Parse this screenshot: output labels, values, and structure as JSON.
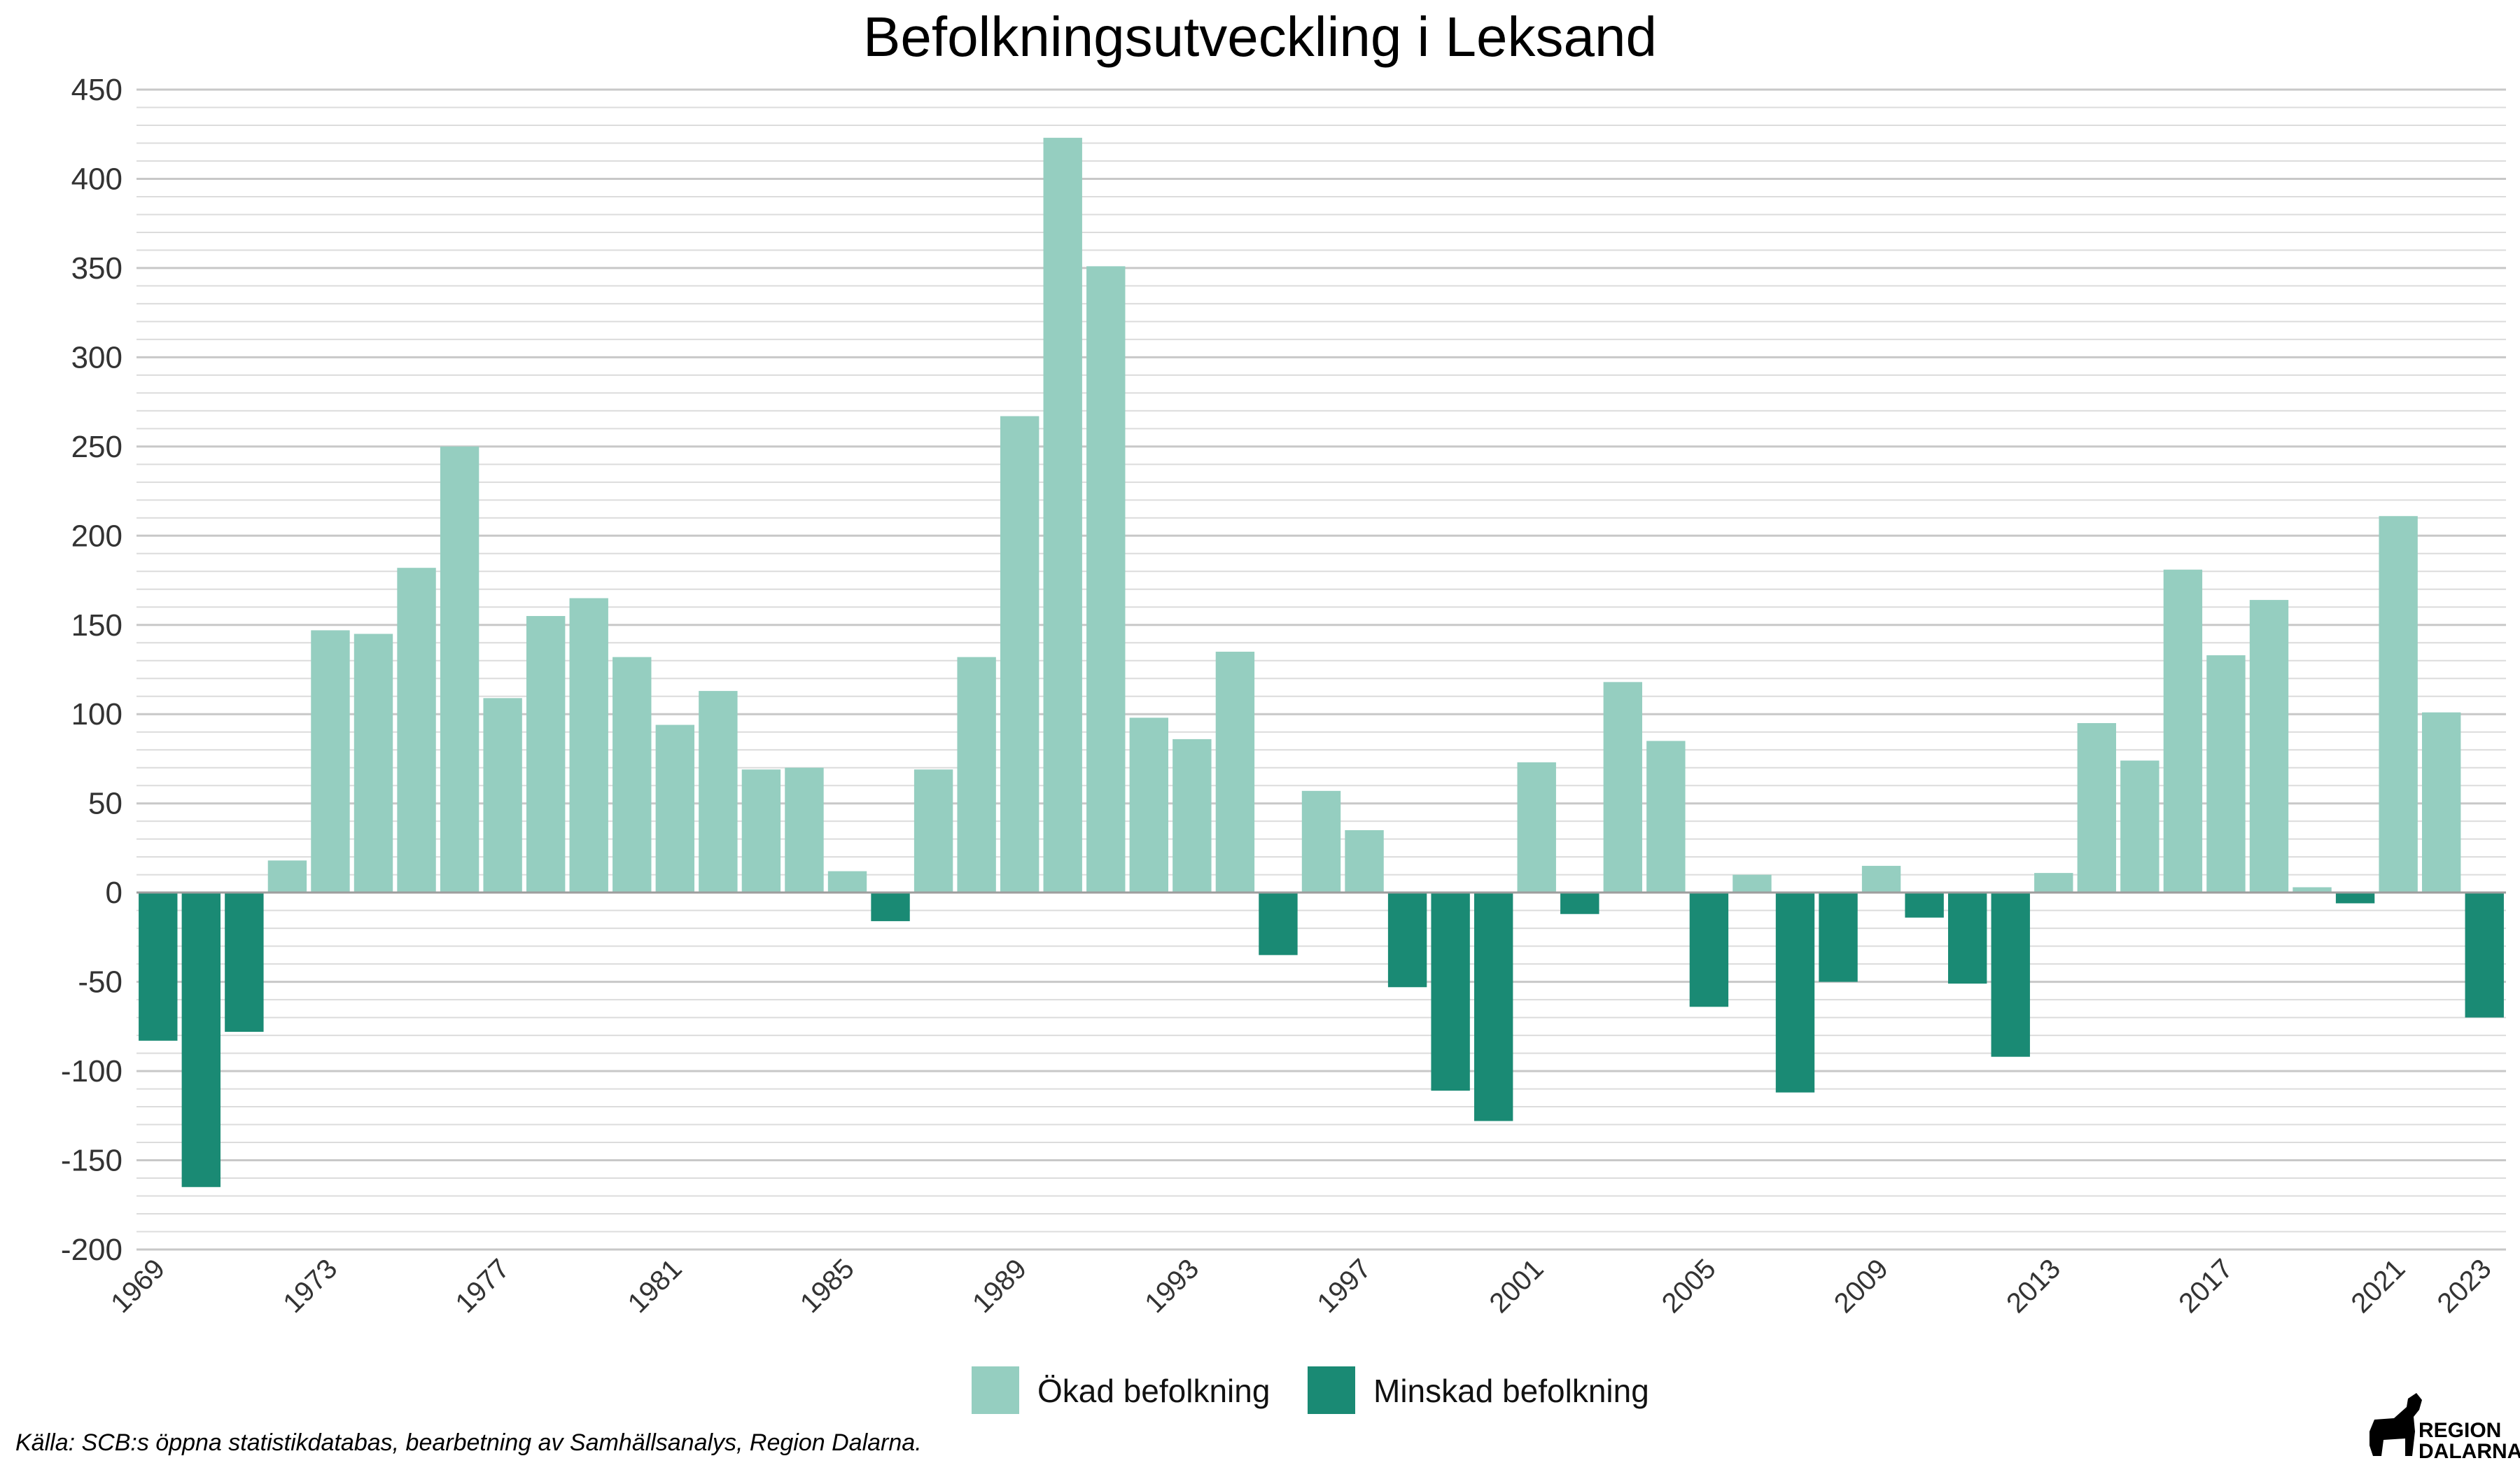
{
  "chart_data": {
    "type": "bar",
    "title": "Befolkningsutveckling i Leksand",
    "xlabel": "",
    "ylabel": "",
    "ylim": [
      -200,
      450
    ],
    "yticks": [
      -200,
      -150,
      -100,
      -50,
      0,
      50,
      100,
      150,
      200,
      250,
      300,
      350,
      400,
      450
    ],
    "xtick_labels": [
      "1969",
      "1973",
      "1977",
      "1981",
      "1985",
      "1989",
      "1993",
      "1997",
      "2001",
      "2005",
      "2009",
      "2013",
      "2017",
      "2021",
      "2023"
    ],
    "legend_position": "bottom-center",
    "series": [
      {
        "name": "Ökad befolkning",
        "color": "#95cec0"
      },
      {
        "name": "Minskad befolkning",
        "color": "#1a8a74"
      }
    ],
    "categories": [
      1969,
      1970,
      1971,
      1972,
      1973,
      1974,
      1975,
      1976,
      1977,
      1978,
      1979,
      1980,
      1981,
      1982,
      1983,
      1984,
      1985,
      1986,
      1987,
      1988,
      1989,
      1990,
      1991,
      1992,
      1993,
      1994,
      1995,
      1996,
      1997,
      1998,
      1999,
      2000,
      2001,
      2002,
      2003,
      2004,
      2005,
      2006,
      2007,
      2008,
      2009,
      2010,
      2011,
      2012,
      2013,
      2014,
      2015,
      2016,
      2017,
      2018,
      2019,
      2020,
      2021,
      2022,
      2023
    ],
    "values": [
      -83,
      -165,
      -78,
      18,
      147,
      145,
      182,
      250,
      109,
      155,
      165,
      132,
      94,
      113,
      69,
      70,
      12,
      -16,
      69,
      132,
      267,
      423,
      351,
      98,
      86,
      135,
      -35,
      57,
      35,
      -53,
      -111,
      -128,
      73,
      -12,
      118,
      85,
      -64,
      10,
      -112,
      -50,
      15,
      -14,
      -51,
      -92,
      11,
      95,
      74,
      181,
      133,
      164,
      3,
      -6,
      211,
      101,
      -70
    ]
  },
  "footer": {
    "source": "Källa: SCB:s öppna statistikdatabas, bearbetning av Samhällsanalys, Region Dalarna.",
    "logo_line1": "REGION",
    "logo_line2": "DALARNA"
  }
}
